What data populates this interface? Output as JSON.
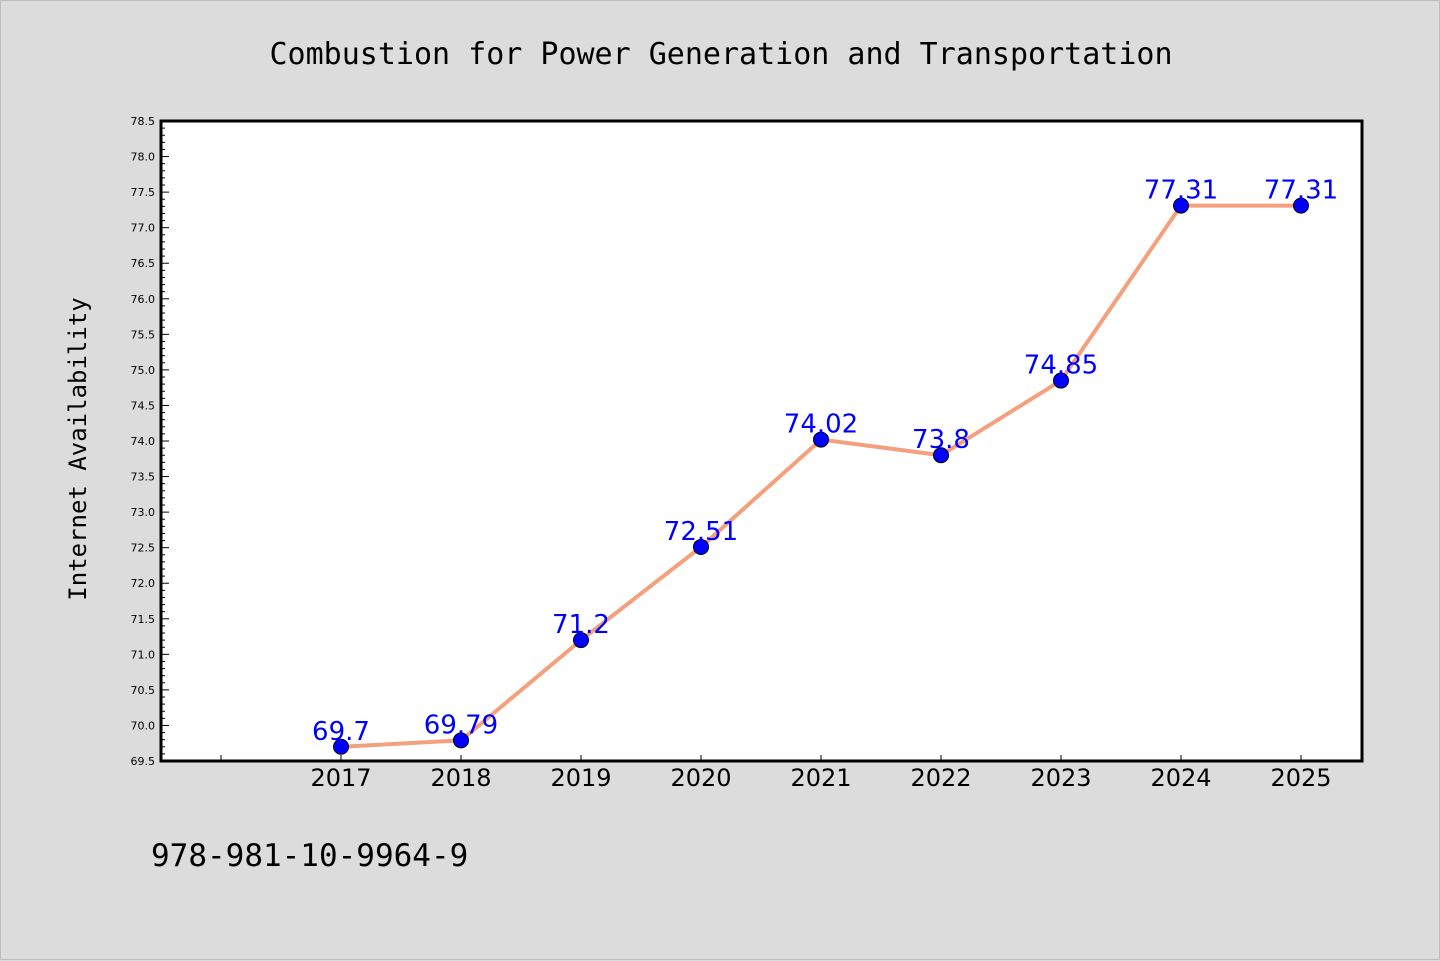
{
  "chart_data": {
    "type": "line",
    "title": "Combustion for Power Generation and Transportation",
    "xlabel": "",
    "ylabel": "Internet Availability",
    "categories": [
      "2017",
      "2018",
      "2019",
      "2020",
      "2021",
      "2022",
      "2023",
      "2024",
      "2025"
    ],
    "series": [
      {
        "values": [
          69.7,
          69.79,
          71.2,
          72.51,
          74.02,
          73.8,
          74.85,
          77.31,
          77.31
        ],
        "labels": [
          "69.7",
          "69.79",
          "71.2",
          "72.51",
          "74.02",
          "73.8",
          "74.85",
          "77.31",
          "77.31"
        ],
        "line_color": "#f4a07c",
        "marker_color": "#0000ff"
      }
    ],
    "ylim": [
      69.5,
      78.5
    ],
    "yticks": [
      "69.5",
      "70.0",
      "70.5",
      "71.0",
      "71.5",
      "72.0",
      "72.5",
      "73.0",
      "73.5",
      "74.0",
      "74.5",
      "75.0",
      "75.5",
      "76.0",
      "76.5",
      "77.0",
      "77.5",
      "78.0",
      "78.5"
    ],
    "grid": false,
    "legend": "none"
  },
  "footer": {
    "isbn": "978-981-10-9964-9"
  },
  "colors": {
    "background": "#dcdcdc",
    "plot_background": "#ffffff",
    "line": "#f4a07c",
    "marker": "#0000ff",
    "data_label": "#0000ff"
  }
}
